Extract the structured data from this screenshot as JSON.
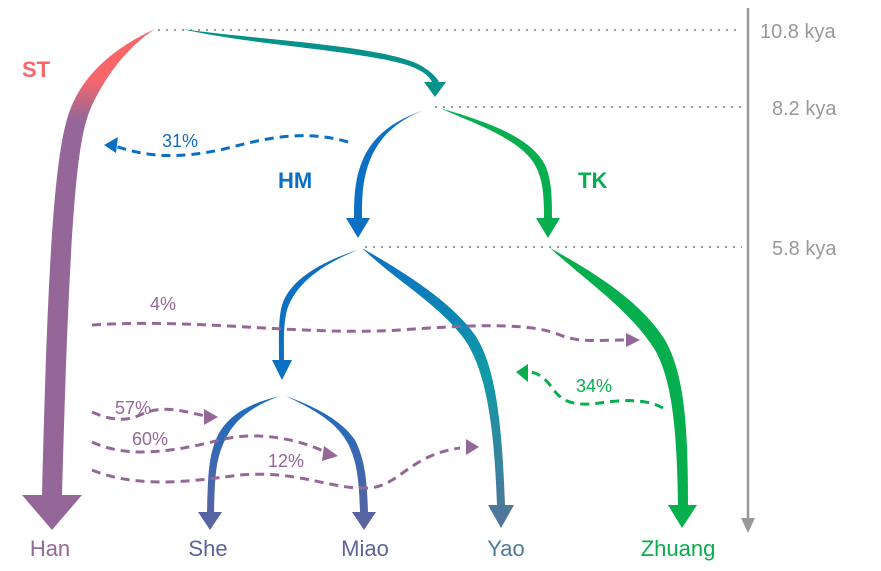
{
  "time_axis": {
    "ticks": [
      "10.8 kya",
      "8.2 kya",
      "5.8 kya"
    ],
    "color": "#999999"
  },
  "groups": {
    "st": {
      "label": "ST",
      "color": "#f7676a"
    },
    "hm": {
      "label": "HM",
      "color": "#0b6fc4"
    },
    "tk": {
      "label": "TK",
      "color": "#07ae4d"
    }
  },
  "populations": [
    {
      "label": "Han",
      "color": "#956798"
    },
    {
      "label": "She",
      "color": "#5e639e"
    },
    {
      "label": "Miao",
      "color": "#5e639e"
    },
    {
      "label": "Yao",
      "color": "#4a7c98"
    },
    {
      "label": "Zhuang",
      "color": "#07ae4d"
    }
  ],
  "admixture": [
    {
      "label": "31%",
      "from": "HM",
      "to": "Han lineage",
      "color": "#0b6fc4"
    },
    {
      "label": "4%",
      "from": "Han",
      "to": "Zhuang",
      "color": "#956798"
    },
    {
      "label": "34%",
      "from": "Zhuang",
      "to": "Yao",
      "color": "#07ae4d"
    },
    {
      "label": "57%",
      "from": "Han",
      "to": "She",
      "color": "#956798"
    },
    {
      "label": "60%",
      "from": "Han",
      "to": "Miao",
      "color": "#956798"
    },
    {
      "label": "12%",
      "from": "Han",
      "to": "Yao",
      "color": "#956798"
    }
  ],
  "colors": {
    "root_teal": "#06928a"
  }
}
